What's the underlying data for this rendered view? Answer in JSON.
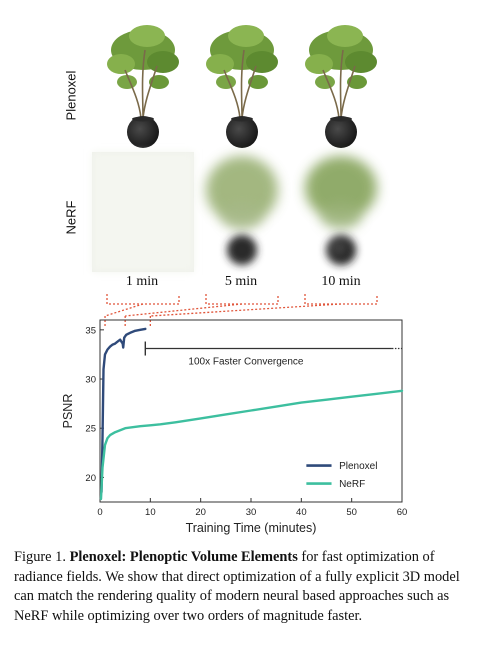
{
  "figure": {
    "row_labels": {
      "top": "Plenoxel",
      "bottom": "NeRF"
    },
    "time_labels": [
      "1 min",
      "5 min",
      "10 min"
    ]
  },
  "chart_data": {
    "type": "line",
    "xlabel": "Training Time (minutes)",
    "ylabel": "PSNR",
    "xlim": [
      0,
      60
    ],
    "ylim": [
      17.5,
      36
    ],
    "xticks": [
      "0",
      "10",
      "20",
      "30",
      "40",
      "50",
      "60"
    ],
    "yticks": [
      "20",
      "25",
      "30",
      "35"
    ],
    "legend_position": "bottom-right",
    "annotation": "100x Faster Convergence",
    "series": [
      {
        "name": "Plenoxel",
        "color": "#2f4a7a",
        "x": [
          0.3,
          0.5,
          0.7,
          1.0,
          1.5,
          2,
          2.5,
          3,
          3.5,
          4,
          4.5,
          4.6,
          4.8,
          5.2,
          6,
          7,
          8,
          9
        ],
        "y": [
          18.5,
          24,
          31,
          32.5,
          33,
          33.3,
          33.5,
          33.6,
          33.8,
          34,
          33.6,
          33.2,
          34.2,
          34.5,
          34.7,
          34.9,
          35,
          35.1
        ]
      },
      {
        "name": "NeRF",
        "color": "#3dbf9f",
        "x": [
          0.2,
          0.5,
          1,
          1.5,
          2,
          3,
          5,
          8,
          10,
          12,
          15,
          20,
          25,
          30,
          35,
          40,
          45,
          50,
          55,
          60
        ],
        "y": [
          17.8,
          21,
          23.3,
          24,
          24.3,
          24.6,
          25,
          25.2,
          25.3,
          25.4,
          25.6,
          26,
          26.4,
          26.8,
          27.2,
          27.6,
          27.9,
          28.2,
          28.5,
          28.8
        ]
      }
    ]
  },
  "caption": {
    "prefix": "Figure 1.",
    "bold": "Plenoxel: Plenoptic Volume Elements",
    "text": " for fast optimization of radiance fields. We show that direct optimization of a fully explicit 3D model can match the rendering quality of modern neural based approaches such as NeRF while optimizing over two orders of magnitude faster."
  },
  "colors": {
    "foliage": "#6e9a3c",
    "pot": "#1d1d1d",
    "dotted": "#e0553a"
  }
}
